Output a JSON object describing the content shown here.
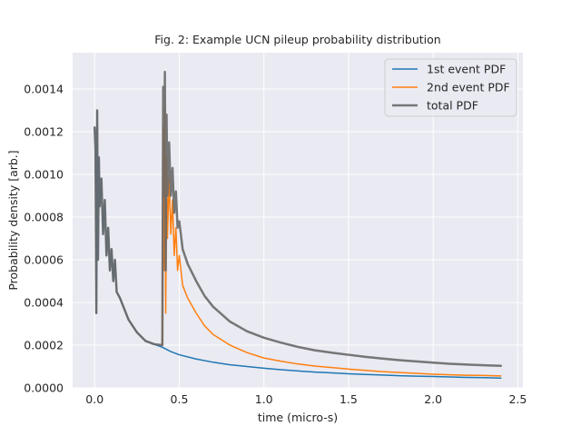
{
  "chart_data": {
    "type": "line",
    "title": "Fig. 2: Example UCN pileup probability distribution",
    "xlabel": "time (micro-s)",
    "ylabel": "Probability density [arb.]",
    "xlim": [
      -0.13,
      2.53
    ],
    "ylim": [
      0,
      0.00157
    ],
    "x_ticks": [
      0,
      0.5,
      1.0,
      1.5,
      2.0,
      2.5
    ],
    "x_tick_labels": [
      "0.0",
      "0.5",
      "1.0",
      "1.5",
      "2.0",
      "2.5"
    ],
    "y_ticks": [
      0,
      0.0002,
      0.0004,
      0.0006,
      0.0008,
      0.001,
      0.0012,
      0.0014
    ],
    "y_tick_labels": [
      "0.0000",
      "0.0002",
      "0.0004",
      "0.0006",
      "0.0008",
      "0.0010",
      "0.0012",
      "0.0014"
    ],
    "grid": true,
    "legend_position": "top-right",
    "series": [
      {
        "name": "1st event PDF",
        "color": "#1f77b4",
        "width": 1.5,
        "x": [
          0.0,
          0.005,
          0.01,
          0.015,
          0.02,
          0.025,
          0.03,
          0.04,
          0.05,
          0.06,
          0.07,
          0.08,
          0.09,
          0.1,
          0.11,
          0.12,
          0.13,
          0.15,
          0.17,
          0.2,
          0.25,
          0.3,
          0.35,
          0.4,
          0.45,
          0.5,
          0.6,
          0.7,
          0.8,
          0.9,
          1.0,
          1.1,
          1.2,
          1.3,
          1.4,
          1.5,
          1.6,
          1.7,
          1.8,
          1.9,
          2.0,
          2.1,
          2.2,
          2.3,
          2.4
        ],
        "y": [
          0.00122,
          0.00112,
          0.00035,
          0.0013,
          0.0006,
          0.00108,
          0.00085,
          0.00098,
          0.00072,
          0.00088,
          0.00062,
          0.00075,
          0.00055,
          0.00065,
          0.0005,
          0.0006,
          0.00045,
          0.00042,
          0.00038,
          0.00032,
          0.00026,
          0.00022,
          0.000205,
          0.00019,
          0.00017,
          0.000155,
          0.000135,
          0.00012,
          0.000108,
          0.0001,
          9.2e-05,
          8.5e-05,
          7.9e-05,
          7.4e-05,
          7e-05,
          6.6e-05,
          6.3e-05,
          6e-05,
          5.7e-05,
          5.5e-05,
          5.3e-05,
          5.1e-05,
          4.9e-05,
          4.8e-05,
          4.6e-05
        ]
      },
      {
        "name": "2nd event PDF",
        "color": "#ff7f0e",
        "width": 1.5,
        "x": [
          0.4,
          0.405,
          0.41,
          0.415,
          0.42,
          0.425,
          0.43,
          0.44,
          0.45,
          0.46,
          0.47,
          0.48,
          0.49,
          0.5,
          0.52,
          0.55,
          0.6,
          0.65,
          0.7,
          0.8,
          0.9,
          1.0,
          1.1,
          1.2,
          1.3,
          1.4,
          1.5,
          1.6,
          1.7,
          1.8,
          1.9,
          2.0,
          2.1,
          2.2,
          2.3,
          2.4
        ],
        "y": [
          0.0002,
          0.00122,
          0.00055,
          0.0013,
          0.00035,
          0.00108,
          0.0007,
          0.00098,
          0.00072,
          0.00088,
          0.00062,
          0.00075,
          0.00055,
          0.00062,
          0.00048,
          0.00042,
          0.00035,
          0.00029,
          0.00025,
          0.0002,
          0.000165,
          0.00014,
          0.000125,
          0.000112,
          0.000102,
          9.5e-05,
          8.8e-05,
          8.2e-05,
          7.6e-05,
          7.2e-05,
          6.8e-05,
          6.4e-05,
          6.1e-05,
          5.9e-05,
          5.8e-05,
          5.6e-05
        ]
      },
      {
        "name": "total PDF",
        "color": "#696969",
        "width": 2.5,
        "opacity": 0.9,
        "x": [
          0.0,
          0.005,
          0.01,
          0.015,
          0.02,
          0.025,
          0.03,
          0.04,
          0.05,
          0.06,
          0.07,
          0.08,
          0.09,
          0.1,
          0.11,
          0.12,
          0.13,
          0.15,
          0.17,
          0.2,
          0.25,
          0.3,
          0.35,
          0.4,
          0.405,
          0.41,
          0.415,
          0.42,
          0.425,
          0.43,
          0.44,
          0.45,
          0.46,
          0.47,
          0.48,
          0.49,
          0.5,
          0.52,
          0.55,
          0.6,
          0.65,
          0.7,
          0.8,
          0.9,
          1.0,
          1.1,
          1.2,
          1.3,
          1.4,
          1.5,
          1.6,
          1.7,
          1.8,
          1.9,
          2.0,
          2.1,
          2.2,
          2.3,
          2.4
        ],
        "y": [
          0.00122,
          0.00112,
          0.00035,
          0.0013,
          0.0006,
          0.00108,
          0.00085,
          0.00098,
          0.00072,
          0.00088,
          0.00062,
          0.00075,
          0.00055,
          0.00065,
          0.0005,
          0.0006,
          0.00045,
          0.00042,
          0.00038,
          0.00032,
          0.00026,
          0.00022,
          0.000205,
          0.0002,
          0.00141,
          0.0009,
          0.00148,
          0.00055,
          0.00128,
          0.0009,
          0.00115,
          0.0009,
          0.00103,
          0.00082,
          0.00092,
          0.00075,
          0.00078,
          0.00065,
          0.00058,
          0.0005,
          0.00043,
          0.00038,
          0.00031,
          0.000265,
          0.000235,
          0.000212,
          0.000192,
          0.000176,
          0.000165,
          0.000155,
          0.000145,
          0.000137,
          0.00013,
          0.000124,
          0.000118,
          0.000113,
          0.000109,
          0.000106,
          0.000103
        ]
      }
    ]
  }
}
